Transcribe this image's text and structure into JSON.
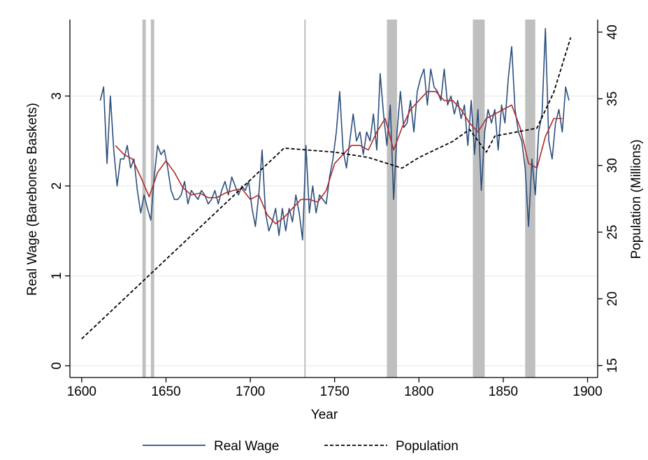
{
  "chart_data": {
    "type": "line",
    "xlabel": "Year",
    "ylabel": "Real Wage (Barebones Baskets)",
    "y2label": "Population (Millions)",
    "xlim": [
      1593,
      1906
    ],
    "xticks": [
      1600,
      1650,
      1700,
      1750,
      1800,
      1850,
      1900
    ],
    "ylim": [
      -0.13,
      3.85
    ],
    "yticks": [
      0,
      1,
      2,
      3
    ],
    "y2lim": [
      14.1,
      40.94
    ],
    "y2ticks": [
      15,
      20,
      25,
      30,
      35,
      40
    ],
    "grid": true,
    "legend": "bottom",
    "shaded_periods": [
      [
        1636,
        1638
      ],
      [
        1641,
        1643
      ],
      [
        1732,
        1732.5
      ],
      [
        1781,
        1787
      ],
      [
        1832,
        1839
      ],
      [
        1863,
        1869
      ]
    ],
    "shade_color": "#bfbfbf",
    "series": [
      {
        "name": "Real Wage",
        "color": "#2c4f7c",
        "style": "solid",
        "x": [
          1611,
          1613,
          1615,
          1617,
          1619,
          1621,
          1623,
          1625,
          1627,
          1629,
          1631,
          1633,
          1635,
          1637,
          1639,
          1641,
          1643,
          1645,
          1647,
          1649,
          1651,
          1653,
          1655,
          1657,
          1659,
          1661,
          1663,
          1665,
          1667,
          1669,
          1671,
          1673,
          1675,
          1677,
          1679,
          1681,
          1683,
          1685,
          1687,
          1689,
          1691,
          1693,
          1695,
          1697,
          1699,
          1701,
          1703,
          1705,
          1707,
          1709,
          1711,
          1713,
          1715,
          1717,
          1719,
          1721,
          1723,
          1725,
          1727,
          1729,
          1731,
          1733,
          1735,
          1737,
          1739,
          1741,
          1743,
          1745,
          1747,
          1749,
          1751,
          1753,
          1755,
          1757,
          1759,
          1761,
          1763,
          1765,
          1767,
          1769,
          1771,
          1773,
          1775,
          1777,
          1779,
          1781,
          1783,
          1785,
          1787,
          1789,
          1791,
          1793,
          1795,
          1797,
          1799,
          1801,
          1803,
          1805,
          1807,
          1809,
          1811,
          1813,
          1815,
          1817,
          1819,
          1821,
          1823,
          1825,
          1827,
          1829,
          1831,
          1833,
          1835,
          1837,
          1839,
          1841,
          1843,
          1845,
          1847,
          1849,
          1851,
          1853,
          1855,
          1857,
          1859,
          1861,
          1863,
          1865,
          1867,
          1869,
          1871,
          1873,
          1875,
          1877,
          1879,
          1881,
          1883,
          1885,
          1887,
          1889
        ],
        "values": [
          2.95,
          3.1,
          2.25,
          3.0,
          2.4,
          2.0,
          2.3,
          2.3,
          2.45,
          2.2,
          2.3,
          1.95,
          1.7,
          1.9,
          1.75,
          1.62,
          2.1,
          2.45,
          2.35,
          2.4,
          2.2,
          1.95,
          1.85,
          1.85,
          1.9,
          2.05,
          1.8,
          1.95,
          1.9,
          1.85,
          1.95,
          1.9,
          1.8,
          1.85,
          1.95,
          1.8,
          1.95,
          2.05,
          1.9,
          2.1,
          2.0,
          1.9,
          2.0,
          1.95,
          2.05,
          1.75,
          1.55,
          1.9,
          2.4,
          1.7,
          1.5,
          1.6,
          1.75,
          1.45,
          1.75,
          1.5,
          1.75,
          1.6,
          1.9,
          1.7,
          1.4,
          2.45,
          1.7,
          2.0,
          1.7,
          1.9,
          1.85,
          1.8,
          2.1,
          2.3,
          2.6,
          3.05,
          2.4,
          2.2,
          2.5,
          2.8,
          2.5,
          2.6,
          2.35,
          2.6,
          2.5,
          2.8,
          2.4,
          3.25,
          2.8,
          2.45,
          2.9,
          1.85,
          2.6,
          3.05,
          2.65,
          2.7,
          2.95,
          2.6,
          3.05,
          3.2,
          3.3,
          2.9,
          3.3,
          3.1,
          3.05,
          2.95,
          3.3,
          2.9,
          3.0,
          2.8,
          2.95,
          2.75,
          2.9,
          2.45,
          2.95,
          2.35,
          2.85,
          1.95,
          2.6,
          2.85,
          2.7,
          2.85,
          2.4,
          2.9,
          2.7,
          3.2,
          3.55,
          2.85,
          2.6,
          2.5,
          2.2,
          1.55,
          2.3,
          1.9,
          2.6,
          2.8,
          3.75,
          2.5,
          2.3,
          2.7,
          2.85,
          2.6,
          3.1,
          2.95
        ]
      },
      {
        "color": "#b22a2a",
        "style": "solid",
        "x": [
          1620,
          1625,
          1630,
          1635,
          1640,
          1645,
          1650,
          1655,
          1660,
          1665,
          1670,
          1675,
          1680,
          1685,
          1690,
          1695,
          1700,
          1705,
          1710,
          1715,
          1720,
          1725,
          1730,
          1735,
          1740,
          1745,
          1750,
          1755,
          1760,
          1765,
          1770,
          1775,
          1780,
          1785,
          1790,
          1795,
          1800,
          1805,
          1810,
          1815,
          1820,
          1825,
          1830,
          1835,
          1840,
          1845,
          1850,
          1855,
          1860,
          1865,
          1870,
          1875,
          1880,
          1885
        ],
        "values": [
          2.45,
          2.35,
          2.3,
          2.1,
          1.88,
          2.15,
          2.28,
          2.15,
          1.98,
          1.9,
          1.92,
          1.87,
          1.87,
          1.92,
          1.95,
          1.97,
          1.85,
          1.9,
          1.68,
          1.58,
          1.65,
          1.75,
          1.85,
          1.85,
          1.82,
          1.95,
          2.25,
          2.35,
          2.45,
          2.45,
          2.4,
          2.6,
          2.75,
          2.4,
          2.65,
          2.85,
          2.95,
          3.05,
          3.05,
          2.95,
          2.95,
          2.85,
          2.7,
          2.6,
          2.75,
          2.8,
          2.85,
          2.9,
          2.65,
          2.25,
          2.2,
          2.55,
          2.75,
          2.75
        ]
      },
      {
        "name": "Population",
        "color": "#000000",
        "style": "dashed",
        "axis": "y2",
        "x": [
          1600,
          1720,
          1750,
          1770,
          1790,
          1800,
          1820,
          1830,
          1840,
          1845,
          1870,
          1880,
          1890
        ],
        "values": [
          17.0,
          31.3,
          31.0,
          30.6,
          29.8,
          30.6,
          31.8,
          32.7,
          31.0,
          32.2,
          32.8,
          35.5,
          39.6
        ]
      }
    ]
  }
}
